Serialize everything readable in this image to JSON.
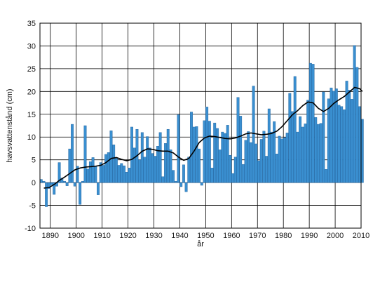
{
  "chart_data": {
    "type": "bar",
    "title": "",
    "xlabel": "år",
    "ylabel": "havsvattenstånd (cm)",
    "xlim": [
      1886,
      2010
    ],
    "ylim": [
      -10,
      35
    ],
    "x_ticks": [
      "1890",
      "1900",
      "1910",
      "1920",
      "1930",
      "1940",
      "1950",
      "1960",
      "1970",
      "1980",
      "1990",
      "2000",
      "2010"
    ],
    "y_ticks": [
      "-10",
      "-5",
      "0",
      "5",
      "10",
      "15",
      "20",
      "25",
      "30",
      "35"
    ],
    "grid": true,
    "colors": {
      "bar": "#3a8fd0",
      "bar_edge": "#1f5f99",
      "trend": "#000000",
      "grid": "#000000"
    },
    "series": [
      {
        "type": "bar",
        "x": [
          1886,
          1887,
          1888,
          1889,
          1890,
          1891,
          1892,
          1893,
          1894,
          1895,
          1896,
          1897,
          1898,
          1899,
          1900,
          1901,
          1902,
          1903,
          1904,
          1905,
          1906,
          1907,
          1908,
          1909,
          1910,
          1911,
          1912,
          1913,
          1914,
          1915,
          1916,
          1917,
          1918,
          1919,
          1920,
          1921,
          1922,
          1923,
          1924,
          1925,
          1926,
          1927,
          1928,
          1929,
          1930,
          1931,
          1932,
          1933,
          1934,
          1935,
          1936,
          1937,
          1938,
          1939,
          1940,
          1941,
          1942,
          1943,
          1944,
          1945,
          1946,
          1947,
          1948,
          1949,
          1950,
          1951,
          1952,
          1953,
          1954,
          1955,
          1956,
          1957,
          1958,
          1959,
          1960,
          1961,
          1962,
          1963,
          1964,
          1965,
          1966,
          1967,
          1968,
          1969,
          1970,
          1971,
          1972,
          1973,
          1974,
          1975,
          1976,
          1977,
          1978,
          1979,
          1980,
          1981,
          1982,
          1983,
          1984,
          1985,
          1986,
          1987,
          1988,
          1989,
          1990,
          1991,
          1992,
          1993,
          1994,
          1995,
          1996,
          1997,
          1998,
          1999,
          2000,
          2001,
          2002,
          2003,
          2004,
          2005,
          2006,
          2007,
          2008,
          2009,
          2010
        ],
        "values": [
          0.7,
          0.3,
          -5.3,
          -1.3,
          -0.5,
          -2.6,
          -0.8,
          4.4,
          1.0,
          0.3,
          -0.7,
          7.4,
          12.8,
          -0.8,
          3.6,
          -4.8,
          0.3,
          12.5,
          3.0,
          4.6,
          5.5,
          3.6,
          -2.7,
          4.4,
          3.8,
          6.2,
          6.6,
          11.4,
          8.3,
          5.5,
          3.8,
          4.2,
          3.7,
          2.3,
          3.2,
          12.2,
          7.6,
          11.7,
          5.0,
          11.0,
          5.6,
          10.1,
          7.6,
          6.4,
          5.8,
          8.0,
          11.0,
          1.3,
          8.6,
          11.7,
          7.2,
          2.7,
          0.3,
          14.9,
          -0.9,
          3.9,
          -2.0,
          5.6,
          15.5,
          12.2,
          12.3,
          7.4,
          -0.6,
          13.6,
          16.6,
          13.5,
          3.2,
          13.1,
          11.9,
          7.2,
          11.1,
          10.8,
          12.6,
          6.0,
          2.0,
          5.6,
          18.7,
          14.6,
          4.0,
          9.3,
          11.2,
          8.8,
          21.2,
          8.5,
          4.8,
          9.5,
          11.3,
          5.8,
          16.2,
          11.1,
          13.4,
          6.3,
          10.2,
          9.6,
          9.9,
          10.9,
          19.6,
          15.6,
          23.3,
          11.1,
          14.5,
          12.2,
          12.9,
          18.1,
          26.2,
          26.0,
          14.3,
          12.8,
          13.0,
          19.9,
          2.9,
          18.4,
          20.8,
          20.1,
          20.6,
          17.0,
          16.7,
          16.0,
          22.3,
          20.3,
          18.3,
          30.1,
          25.3,
          16.7,
          13.9
        ]
      },
      {
        "type": "line",
        "name": "",
        "x": [
          1887,
          1889,
          1891,
          1893,
          1895,
          1897,
          1899,
          1901,
          1903,
          1905,
          1907,
          1909,
          1911,
          1913,
          1915,
          1917,
          1919,
          1921,
          1923,
          1925,
          1927,
          1929,
          1931,
          1933,
          1935,
          1937,
          1939,
          1941,
          1943,
          1945,
          1947,
          1949,
          1951,
          1953,
          1955,
          1957,
          1959,
          1961,
          1963,
          1965,
          1967,
          1969,
          1971,
          1973,
          1975,
          1977,
          1979,
          1981,
          1983,
          1985,
          1987,
          1989,
          1991,
          1993,
          1995,
          1997,
          1999,
          2001,
          2003,
          2005,
          2007,
          2009,
          2010
        ],
        "values": [
          -1.2,
          -1.1,
          -0.4,
          0.5,
          1.2,
          2.0,
          2.8,
          3.2,
          3.4,
          3.5,
          3.6,
          3.8,
          4.4,
          5.3,
          5.5,
          5.1,
          4.8,
          5.1,
          5.9,
          6.9,
          7.4,
          7.3,
          7.0,
          6.9,
          6.9,
          6.5,
          5.6,
          4.9,
          5.3,
          6.9,
          8.8,
          9.8,
          10.2,
          10.1,
          9.9,
          9.7,
          9.6,
          9.8,
          10.2,
          10.7,
          10.9,
          10.7,
          10.5,
          10.6,
          10.8,
          11.3,
          12.3,
          13.6,
          14.9,
          15.8,
          16.9,
          17.7,
          17.5,
          16.3,
          15.6,
          16.3,
          17.4,
          18.2,
          18.9,
          19.9,
          20.9,
          20.6,
          20.0
        ]
      }
    ]
  }
}
